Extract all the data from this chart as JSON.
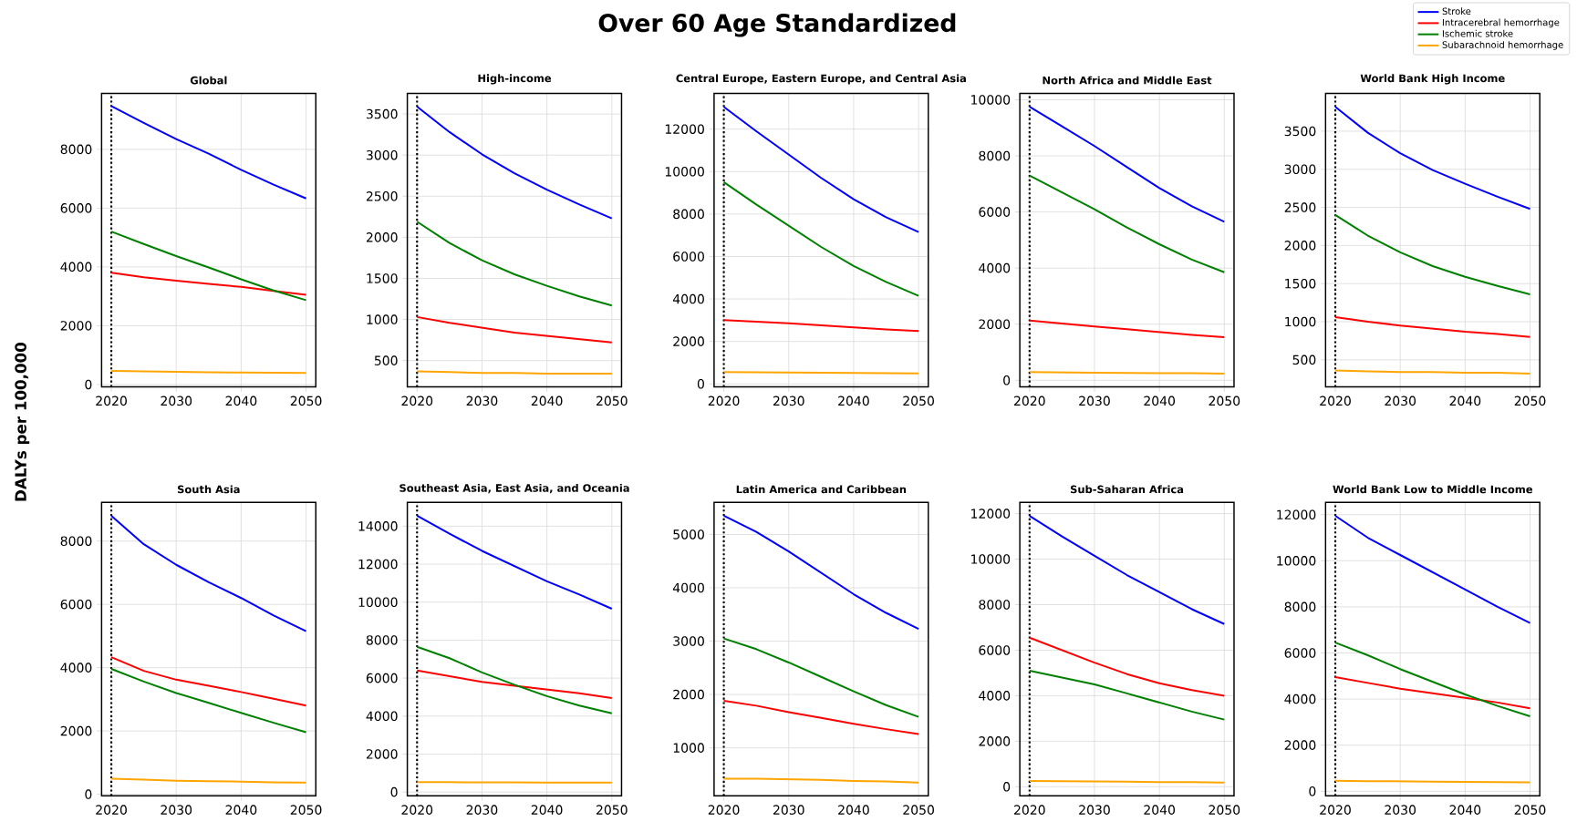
{
  "chart_data": [
    {
      "type": "line",
      "title": "Global",
      "ylabel": "DALYs per 100,000",
      "annotations": [
        "Over 60 Age Standardized"
      ],
      "x": [
        2020,
        2025,
        2030,
        2035,
        2040,
        2045,
        2050
      ],
      "xlim": [
        2018.5,
        2051.5
      ],
      "ylim": [
        -80,
        9900
      ],
      "xticks": [
        2020,
        2030,
        2040,
        2050
      ],
      "yticks": [
        0,
        2000,
        4000,
        6000,
        8000
      ],
      "grid": true,
      "series": [
        {
          "color": "#0000ff",
          "values": [
            9470,
            8900,
            8350,
            7850,
            7300,
            6800,
            6330
          ]
        },
        {
          "color": "#ff0000",
          "values": [
            3800,
            3650,
            3530,
            3420,
            3320,
            3180,
            3050
          ]
        },
        {
          "color": "#008000",
          "values": [
            5200,
            4780,
            4370,
            3980,
            3580,
            3200,
            2870
          ]
        },
        {
          "color": "#ffa500",
          "values": [
            460,
            450,
            430,
            420,
            410,
            400,
            390
          ]
        }
      ],
      "ref_lines": [
        {
          "axis": "x",
          "value": 2020,
          "color": "#000000",
          "line_style": "dotted"
        }
      ]
    },
    {
      "type": "line",
      "title": "High-income",
      "x": [
        2020,
        2025,
        2030,
        2035,
        2040,
        2045,
        2050
      ],
      "xlim": [
        2018.5,
        2051.5
      ],
      "ylim": [
        180,
        3750
      ],
      "xticks": [
        2020,
        2030,
        2040,
        2050
      ],
      "yticks": [
        500,
        1000,
        1500,
        2000,
        2500,
        3000,
        3500
      ],
      "grid": true,
      "series": [
        {
          "color": "#0000ff",
          "values": [
            3590,
            3280,
            3010,
            2780,
            2580,
            2400,
            2230
          ]
        },
        {
          "color": "#ff0000",
          "values": [
            1030,
            960,
            900,
            840,
            800,
            760,
            720
          ]
        },
        {
          "color": "#008000",
          "values": [
            2190,
            1930,
            1720,
            1550,
            1410,
            1280,
            1170
          ]
        },
        {
          "color": "#ffa500",
          "values": [
            370,
            360,
            350,
            350,
            340,
            340,
            340
          ]
        }
      ],
      "ref_lines": [
        {
          "axis": "x",
          "value": 2020,
          "color": "#000000",
          "line_style": "dotted"
        }
      ]
    },
    {
      "type": "line",
      "title": "Central Europe, Eastern Europe, and Central Asia",
      "x": [
        2020,
        2025,
        2030,
        2035,
        2040,
        2045,
        2050
      ],
      "xlim": [
        2018.5,
        2051.5
      ],
      "ylim": [
        -140,
        13680
      ],
      "xticks": [
        2020,
        2030,
        2040,
        2050
      ],
      "yticks": [
        0,
        2000,
        4000,
        6000,
        8000,
        10000,
        12000
      ],
      "grid": true,
      "series": [
        {
          "color": "#0000ff",
          "values": [
            13050,
            11900,
            10800,
            9700,
            8700,
            7850,
            7150
          ]
        },
        {
          "color": "#ff0000",
          "values": [
            3000,
            2930,
            2860,
            2760,
            2660,
            2570,
            2490
          ]
        },
        {
          "color": "#008000",
          "values": [
            9500,
            8450,
            7450,
            6450,
            5550,
            4800,
            4150
          ]
        },
        {
          "color": "#ffa500",
          "values": [
            560,
            550,
            540,
            530,
            520,
            500,
            490
          ]
        }
      ],
      "ref_lines": [
        {
          "axis": "x",
          "value": 2020,
          "color": "#000000",
          "line_style": "dotted"
        }
      ]
    },
    {
      "type": "line",
      "title": "North Africa and Middle East",
      "x": [
        2020,
        2025,
        2030,
        2035,
        2040,
        2045,
        2050
      ],
      "xlim": [
        2018.5,
        2051.5
      ],
      "ylim": [
        -235,
        10225
      ],
      "xticks": [
        2020,
        2030,
        2040,
        2050
      ],
      "yticks": [
        0,
        2000,
        4000,
        6000,
        8000,
        10000
      ],
      "grid": true,
      "series": [
        {
          "color": "#0000ff",
          "values": [
            9750,
            9050,
            8350,
            7600,
            6850,
            6200,
            5650
          ]
        },
        {
          "color": "#ff0000",
          "values": [
            2130,
            2020,
            1920,
            1820,
            1720,
            1620,
            1540
          ]
        },
        {
          "color": "#008000",
          "values": [
            7300,
            6700,
            6100,
            5450,
            4850,
            4300,
            3850
          ]
        },
        {
          "color": "#ffa500",
          "values": [
            290,
            280,
            270,
            260,
            250,
            250,
            240
          ]
        }
      ],
      "ref_lines": [
        {
          "axis": "x",
          "value": 2020,
          "color": "#000000",
          "line_style": "dotted"
        }
      ]
    },
    {
      "type": "line",
      "title": "World Bank High Income",
      "legend": "top right",
      "x": [
        2020,
        2025,
        2030,
        2035,
        2040,
        2045,
        2050
      ],
      "xlim": [
        2018.5,
        2051.5
      ],
      "ylim": [
        145,
        3995
      ],
      "xticks": [
        2020,
        2030,
        2040,
        2050
      ],
      "yticks": [
        500,
        1000,
        1500,
        2000,
        2500,
        3000,
        3500
      ],
      "grid": true,
      "series": [
        {
          "name": "Stroke",
          "color": "#0000ff",
          "values": [
            3820,
            3480,
            3210,
            2990,
            2810,
            2640,
            2480
          ]
        },
        {
          "name": "Intracerebral hemorrhage",
          "color": "#ff0000",
          "values": [
            1060,
            1000,
            950,
            910,
            870,
            840,
            800
          ]
        },
        {
          "name": "Ischemic stroke",
          "color": "#008000",
          "values": [
            2400,
            2130,
            1910,
            1730,
            1590,
            1470,
            1360
          ]
        },
        {
          "name": "Subarachnoid hemorrhage",
          "color": "#ffa500",
          "values": [
            360,
            350,
            340,
            340,
            330,
            330,
            320
          ]
        }
      ],
      "ref_lines": [
        {
          "axis": "x",
          "value": 2020,
          "color": "#000000",
          "line_style": "dotted"
        }
      ]
    },
    {
      "type": "line",
      "title": "South Asia",
      "x": [
        2020,
        2025,
        2030,
        2035,
        2040,
        2045,
        2050
      ],
      "xlim": [
        2018.5,
        2051.5
      ],
      "ylim": [
        -50,
        9220
      ],
      "xticks": [
        2020,
        2030,
        2040,
        2050
      ],
      "yticks": [
        0,
        2000,
        4000,
        6000,
        8000
      ],
      "grid": true,
      "series": [
        {
          "color": "#0000ff",
          "values": [
            8800,
            7900,
            7250,
            6700,
            6200,
            5650,
            5150
          ]
        },
        {
          "color": "#ff0000",
          "values": [
            4330,
            3900,
            3620,
            3430,
            3230,
            3020,
            2800
          ]
        },
        {
          "color": "#008000",
          "values": [
            3960,
            3560,
            3200,
            2890,
            2570,
            2260,
            1960
          ]
        },
        {
          "color": "#ffa500",
          "values": [
            490,
            460,
            430,
            410,
            400,
            380,
            370
          ]
        }
      ],
      "ref_lines": [
        {
          "axis": "x",
          "value": 2020,
          "color": "#000000",
          "line_style": "dotted"
        }
      ]
    },
    {
      "type": "line",
      "title": "Southeast Asia, East Asia, and Oceania",
      "x": [
        2020,
        2025,
        2030,
        2035,
        2040,
        2045,
        2050
      ],
      "xlim": [
        2018.5,
        2051.5
      ],
      "ylim": [
        -200,
        15250
      ],
      "xticks": [
        2020,
        2030,
        2040,
        2050
      ],
      "yticks": [
        0,
        2000,
        4000,
        6000,
        8000,
        10000,
        12000,
        14000
      ],
      "grid": true,
      "series": [
        {
          "color": "#0000ff",
          "values": [
            14550,
            13600,
            12700,
            11900,
            11100,
            10400,
            9650
          ]
        },
        {
          "color": "#ff0000",
          "values": [
            6400,
            6100,
            5800,
            5600,
            5400,
            5200,
            4950
          ]
        },
        {
          "color": "#008000",
          "values": [
            7650,
            7050,
            6300,
            5650,
            5050,
            4550,
            4150
          ]
        },
        {
          "color": "#ffa500",
          "values": [
            520,
            520,
            510,
            510,
            500,
            500,
            500
          ]
        }
      ],
      "ref_lines": [
        {
          "axis": "x",
          "value": 2020,
          "color": "#000000",
          "line_style": "dotted"
        }
      ]
    },
    {
      "type": "line",
      "title": "Latin America and Caribbean",
      "x": [
        2020,
        2025,
        2030,
        2035,
        2040,
        2045,
        2050
      ],
      "xlim": [
        2018.5,
        2051.5
      ],
      "ylim": [
        100,
        5600
      ],
      "xticks": [
        2020,
        2030,
        2040,
        2050
      ],
      "yticks": [
        1000,
        2000,
        3000,
        4000,
        5000
      ],
      "grid": true,
      "series": [
        {
          "color": "#0000ff",
          "values": [
            5350,
            5050,
            4680,
            4280,
            3880,
            3530,
            3230
          ]
        },
        {
          "color": "#ff0000",
          "values": [
            1880,
            1790,
            1670,
            1560,
            1450,
            1350,
            1260
          ]
        },
        {
          "color": "#008000",
          "values": [
            3050,
            2850,
            2600,
            2330,
            2060,
            1800,
            1580
          ]
        },
        {
          "color": "#ffa500",
          "values": [
            420,
            420,
            410,
            400,
            380,
            370,
            350
          ]
        }
      ],
      "ref_lines": [
        {
          "axis": "x",
          "value": 2020,
          "color": "#000000",
          "line_style": "dotted"
        }
      ]
    },
    {
      "type": "line",
      "title": "Sub-Saharan Africa",
      "x": [
        2020,
        2025,
        2030,
        2035,
        2040,
        2045,
        2050
      ],
      "xlim": [
        2018.5,
        2051.5
      ],
      "ylim": [
        -400,
        12490
      ],
      "xticks": [
        2020,
        2030,
        2040,
        2050
      ],
      "yticks": [
        0,
        2000,
        4000,
        6000,
        8000,
        10000,
        12000
      ],
      "grid": true,
      "series": [
        {
          "color": "#0000ff",
          "values": [
            11900,
            11000,
            10150,
            9300,
            8550,
            7800,
            7150
          ]
        },
        {
          "color": "#ff0000",
          "values": [
            6550,
            6000,
            5450,
            4950,
            4550,
            4250,
            4000
          ]
        },
        {
          "color": "#008000",
          "values": [
            5100,
            4800,
            4500,
            4100,
            3700,
            3300,
            2950
          ]
        },
        {
          "color": "#ffa500",
          "values": [
            250,
            240,
            230,
            220,
            200,
            200,
            180
          ]
        }
      ],
      "ref_lines": [
        {
          "axis": "x",
          "value": 2020,
          "color": "#000000",
          "line_style": "dotted"
        }
      ]
    },
    {
      "type": "line",
      "title": "World Bank Low to Middle Income",
      "x": [
        2020,
        2025,
        2030,
        2035,
        2040,
        2045,
        2050
      ],
      "xlim": [
        2018.5,
        2051.5
      ],
      "ylim": [
        -200,
        12530
      ],
      "xticks": [
        2020,
        2030,
        2040,
        2050
      ],
      "yticks": [
        0,
        2000,
        4000,
        6000,
        8000,
        10000,
        12000
      ],
      "grid": true,
      "series": [
        {
          "color": "#0000ff",
          "values": [
            11950,
            11000,
            10250,
            9500,
            8750,
            8000,
            7300
          ]
        },
        {
          "color": "#ff0000",
          "values": [
            4950,
            4700,
            4450,
            4250,
            4050,
            3850,
            3600
          ]
        },
        {
          "color": "#008000",
          "values": [
            6450,
            5900,
            5300,
            4750,
            4200,
            3700,
            3250
          ]
        },
        {
          "color": "#ffa500",
          "values": [
            450,
            440,
            430,
            420,
            410,
            400,
            390
          ]
        }
      ],
      "ref_lines": [
        {
          "axis": "x",
          "value": 2020,
          "color": "#000000",
          "line_style": "dotted"
        }
      ]
    }
  ]
}
